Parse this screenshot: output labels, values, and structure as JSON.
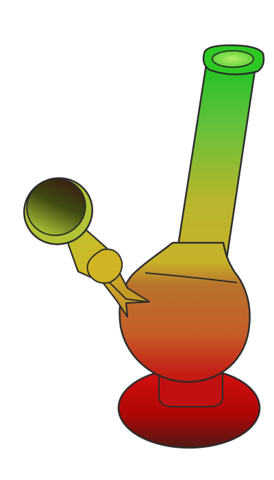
{
  "illustration": {
    "subject": "water-pipe-illustration",
    "palette": {
      "outline": "#2b2b2b",
      "green": "#22c22a",
      "yellow_green": "#c4b62a",
      "orange": "#c36a2c",
      "red": "#c40c0c",
      "dark_red": "#5a1a14",
      "bowl_dark": "#3a2a12",
      "bowl_light": "#a8c034"
    }
  }
}
